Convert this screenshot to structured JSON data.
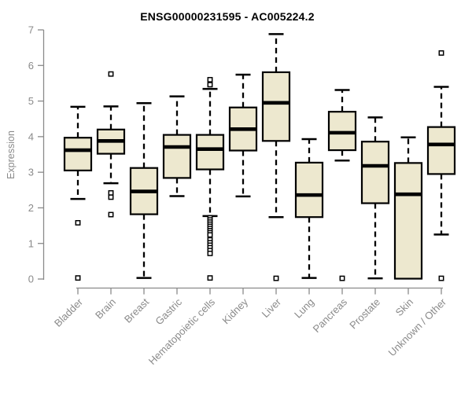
{
  "title": "ENSG00000231595 - AC005224.2",
  "colors": {
    "box_fill": "#EDE8CF",
    "box_stroke": "#000000",
    "median": "#000000",
    "whisker": "#000000",
    "outlier_stroke": "#000000",
    "outlier_fill": "#ffffff",
    "axis": "#8a8a8a",
    "tick_label": "#8a8a8a",
    "title_color": "#000000",
    "background": "#ffffff"
  },
  "chart_data": {
    "type": "boxplot",
    "title": "ENSG00000231595 - AC005224.2",
    "xlabel": "",
    "ylabel": "Expression",
    "ylim": [
      0,
      7
    ],
    "yticks": [
      0,
      1,
      2,
      3,
      4,
      5,
      6,
      7
    ],
    "grid": false,
    "legend": false,
    "categories": [
      "Bladder",
      "Brain",
      "Breast",
      "Gastric",
      "Hematopoietic cells",
      "Kidney",
      "Liver",
      "Lung",
      "Pancreas",
      "Prostate",
      "Skin",
      "Unknown / Other"
    ],
    "series": [
      {
        "name": "Bladder",
        "whisker_low": 2.25,
        "q1": 3.05,
        "median": 3.62,
        "q3": 3.97,
        "whisker_high": 4.84,
        "outliers": [
          1.58,
          0.03
        ]
      },
      {
        "name": "Brain",
        "whisker_low": 2.69,
        "q1": 3.52,
        "median": 3.88,
        "q3": 4.2,
        "whisker_high": 4.85,
        "outliers": [
          5.76,
          2.42,
          2.3,
          1.81
        ]
      },
      {
        "name": "Breast",
        "whisker_low": 0.03,
        "q1": 1.82,
        "median": 2.46,
        "q3": 3.12,
        "whisker_high": 4.94,
        "outliers": []
      },
      {
        "name": "Gastric",
        "whisker_low": 2.33,
        "q1": 2.84,
        "median": 3.71,
        "q3": 4.05,
        "whisker_high": 5.13,
        "outliers": []
      },
      {
        "name": "Hematopoietic cells",
        "whisker_low": 1.77,
        "q1": 3.08,
        "median": 3.65,
        "q3": 4.05,
        "whisker_high": 5.34,
        "outliers": [
          5.6,
          5.46,
          1.72,
          1.66,
          1.6,
          1.54,
          1.48,
          1.42,
          1.36,
          1.3,
          1.24,
          1.1,
          1.02,
          0.95,
          0.88,
          0.8,
          0.72,
          0.03
        ]
      },
      {
        "name": "Kidney",
        "whisker_low": 2.32,
        "q1": 3.61,
        "median": 4.21,
        "q3": 4.82,
        "whisker_high": 5.74,
        "outliers": []
      },
      {
        "name": "Liver",
        "whisker_low": 1.74,
        "q1": 3.88,
        "median": 4.95,
        "q3": 5.81,
        "whisker_high": 6.88,
        "outliers": [
          0.02
        ]
      },
      {
        "name": "Lung",
        "whisker_low": 0.03,
        "q1": 1.74,
        "median": 2.36,
        "q3": 3.27,
        "whisker_high": 3.93,
        "outliers": []
      },
      {
        "name": "Pancreas",
        "whisker_low": 3.33,
        "q1": 3.62,
        "median": 4.11,
        "q3": 4.7,
        "whisker_high": 5.31,
        "outliers": [
          0.02
        ]
      },
      {
        "name": "Prostate",
        "whisker_low": 0.02,
        "q1": 2.13,
        "median": 3.18,
        "q3": 3.86,
        "whisker_high": 4.54,
        "outliers": []
      },
      {
        "name": "Skin",
        "whisker_low": 0.01,
        "q1": 0.01,
        "median": 2.38,
        "q3": 3.26,
        "whisker_high": 3.98,
        "outliers": []
      },
      {
        "name": "Unknown / Other",
        "whisker_low": 1.25,
        "q1": 2.95,
        "median": 3.78,
        "q3": 4.27,
        "whisker_high": 5.4,
        "outliers": [
          6.35,
          0.02
        ]
      }
    ]
  }
}
